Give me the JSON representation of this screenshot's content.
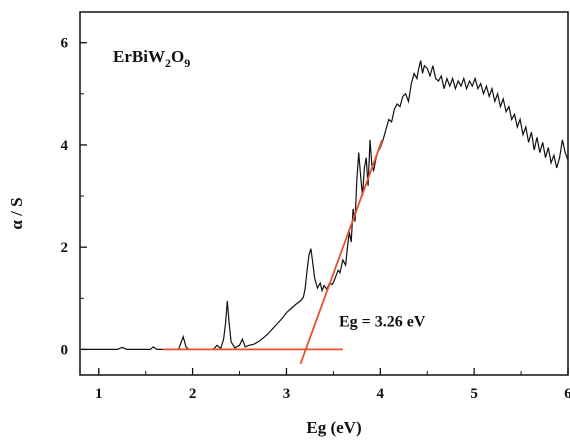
{
  "chart_data": {
    "type": "line",
    "title": "ErBiW2O9",
    "title_parts": {
      "base1": "ErBiW",
      "sub1": "2",
      "base2": "O",
      "sub2": "9"
    },
    "xlabel": "Eg (eV)",
    "ylabel": "α / S",
    "xlim": [
      0.8,
      6.0
    ],
    "ylim": [
      -0.5,
      6.6
    ],
    "x_ticks": [
      1,
      2,
      3,
      4,
      5,
      6
    ],
    "x_tick_labels": [
      "1",
      "2",
      "3",
      "4",
      "5",
      "6"
    ],
    "y_ticks": [
      0,
      2,
      4,
      6
    ],
    "y_tick_labels": [
      "0",
      "2",
      "4",
      "6"
    ],
    "grid": false,
    "legend": "none",
    "annotation": "Eg = 3.26 eV",
    "annotation_pos": {
      "x": 3.56,
      "y": 0.45
    },
    "colors": {
      "curve": "#111111",
      "fit": "#e8502e"
    },
    "series": [
      {
        "points": [
          [
            0.8,
            0.0
          ],
          [
            1.2,
            0.0
          ],
          [
            1.25,
            0.04
          ],
          [
            1.3,
            0.0
          ],
          [
            1.55,
            0.0
          ],
          [
            1.58,
            0.05
          ],
          [
            1.62,
            0.0
          ],
          [
            1.85,
            0.0
          ],
          [
            1.87,
            0.1
          ],
          [
            1.9,
            0.25
          ],
          [
            1.93,
            0.05
          ],
          [
            1.96,
            0.0
          ],
          [
            2.22,
            0.0
          ],
          [
            2.26,
            0.08
          ],
          [
            2.3,
            0.02
          ],
          [
            2.33,
            0.2
          ],
          [
            2.35,
            0.5
          ],
          [
            2.37,
            0.95
          ],
          [
            2.39,
            0.5
          ],
          [
            2.41,
            0.15
          ],
          [
            2.45,
            0.03
          ],
          [
            2.5,
            0.08
          ],
          [
            2.53,
            0.2
          ],
          [
            2.56,
            0.05
          ],
          [
            2.6,
            0.08
          ],
          [
            2.65,
            0.1
          ],
          [
            2.7,
            0.15
          ],
          [
            2.75,
            0.22
          ],
          [
            2.8,
            0.3
          ],
          [
            2.85,
            0.4
          ],
          [
            2.9,
            0.5
          ],
          [
            2.95,
            0.6
          ],
          [
            3.0,
            0.72
          ],
          [
            3.05,
            0.8
          ],
          [
            3.1,
            0.88
          ],
          [
            3.15,
            0.95
          ],
          [
            3.18,
            1.02
          ],
          [
            3.2,
            1.2
          ],
          [
            3.22,
            1.55
          ],
          [
            3.24,
            1.85
          ],
          [
            3.26,
            1.97
          ],
          [
            3.28,
            1.7
          ],
          [
            3.3,
            1.4
          ],
          [
            3.33,
            1.2
          ],
          [
            3.36,
            1.3
          ],
          [
            3.38,
            1.15
          ],
          [
            3.4,
            1.25
          ],
          [
            3.43,
            1.18
          ],
          [
            3.46,
            1.3
          ],
          [
            3.49,
            1.27
          ],
          [
            3.52,
            1.4
          ],
          [
            3.55,
            1.55
          ],
          [
            3.57,
            1.5
          ],
          [
            3.6,
            1.75
          ],
          [
            3.63,
            1.65
          ],
          [
            3.65,
            2.0
          ],
          [
            3.67,
            2.3
          ],
          [
            3.69,
            2.1
          ],
          [
            3.71,
            2.75
          ],
          [
            3.73,
            2.5
          ],
          [
            3.75,
            3.3
          ],
          [
            3.77,
            3.85
          ],
          [
            3.79,
            3.4
          ],
          [
            3.81,
            3.0
          ],
          [
            3.83,
            3.55
          ],
          [
            3.85,
            3.75
          ],
          [
            3.87,
            3.2
          ],
          [
            3.89,
            4.1
          ],
          [
            3.91,
            3.6
          ],
          [
            3.93,
            3.5
          ],
          [
            3.95,
            3.7
          ],
          [
            3.97,
            3.85
          ],
          [
            4.0,
            3.95
          ],
          [
            4.03,
            4.1
          ],
          [
            4.06,
            4.3
          ],
          [
            4.09,
            4.5
          ],
          [
            4.12,
            4.45
          ],
          [
            4.15,
            4.7
          ],
          [
            4.18,
            4.8
          ],
          [
            4.21,
            4.75
          ],
          [
            4.24,
            4.95
          ],
          [
            4.27,
            5.0
          ],
          [
            4.3,
            4.85
          ],
          [
            4.33,
            5.2
          ],
          [
            4.36,
            5.4
          ],
          [
            4.39,
            5.3
          ],
          [
            4.41,
            5.5
          ],
          [
            4.43,
            5.65
          ],
          [
            4.45,
            5.4
          ],
          [
            4.47,
            5.55
          ],
          [
            4.5,
            5.5
          ],
          [
            4.53,
            5.35
          ],
          [
            4.56,
            5.55
          ],
          [
            4.59,
            5.3
          ],
          [
            4.62,
            5.25
          ],
          [
            4.65,
            5.35
          ],
          [
            4.68,
            5.1
          ],
          [
            4.71,
            5.3
          ],
          [
            4.74,
            5.15
          ],
          [
            4.77,
            5.3
          ],
          [
            4.8,
            5.1
          ],
          [
            4.83,
            5.25
          ],
          [
            4.86,
            5.15
          ],
          [
            4.89,
            5.3
          ],
          [
            4.92,
            5.1
          ],
          [
            4.95,
            5.25
          ],
          [
            4.98,
            5.15
          ],
          [
            5.01,
            5.3
          ],
          [
            5.04,
            5.1
          ],
          [
            5.07,
            5.2
          ],
          [
            5.1,
            5.0
          ],
          [
            5.13,
            5.15
          ],
          [
            5.16,
            4.95
          ],
          [
            5.19,
            5.1
          ],
          [
            5.22,
            4.85
          ],
          [
            5.25,
            5.0
          ],
          [
            5.28,
            4.75
          ],
          [
            5.31,
            4.9
          ],
          [
            5.34,
            4.65
          ],
          [
            5.37,
            4.75
          ],
          [
            5.4,
            4.5
          ],
          [
            5.43,
            4.6
          ],
          [
            5.46,
            4.35
          ],
          [
            5.49,
            4.5
          ],
          [
            5.52,
            4.2
          ],
          [
            5.55,
            4.35
          ],
          [
            5.58,
            4.05
          ],
          [
            5.61,
            4.25
          ],
          [
            5.64,
            3.9
          ],
          [
            5.67,
            4.15
          ],
          [
            5.7,
            3.85
          ],
          [
            5.73,
            4.05
          ],
          [
            5.76,
            3.75
          ],
          [
            5.79,
            3.95
          ],
          [
            5.82,
            3.65
          ],
          [
            5.85,
            3.8
          ],
          [
            5.88,
            3.55
          ],
          [
            5.91,
            3.75
          ],
          [
            5.94,
            4.1
          ],
          [
            5.97,
            3.85
          ],
          [
            6.0,
            3.7
          ]
        ]
      }
    ],
    "fit_lines": [
      {
        "points": [
          [
            1.68,
            0.0
          ],
          [
            3.6,
            0.0
          ]
        ]
      },
      {
        "points": [
          [
            3.15,
            -0.28
          ],
          [
            4.02,
            4.1
          ]
        ]
      }
    ]
  }
}
